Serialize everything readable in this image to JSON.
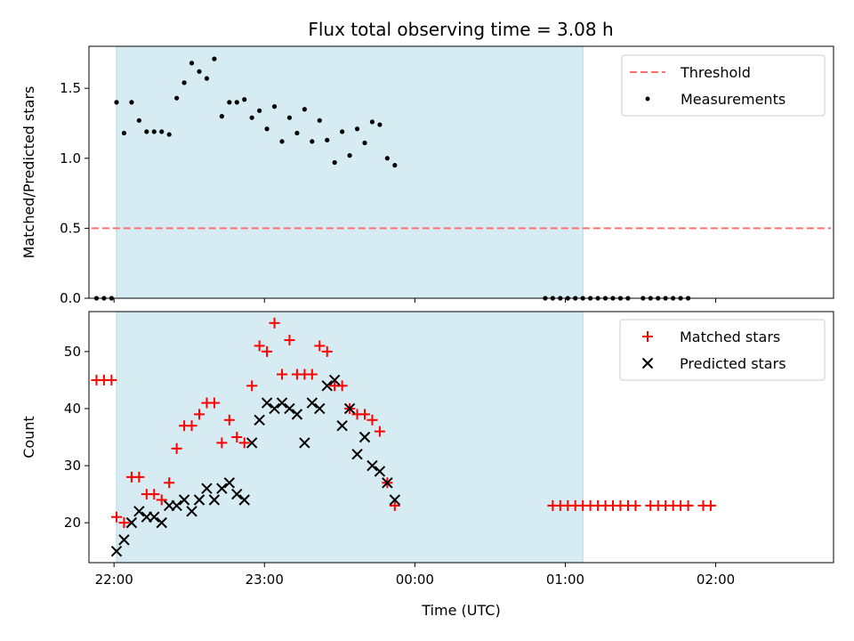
{
  "chart_data": {
    "title": "Flux total observing time = 3.08 h",
    "xlabel": "Time (UTC)",
    "x_axis": {
      "type": "time",
      "range": [
        "21:50",
        "02:47"
      ],
      "ticks": [
        "22:00",
        "23:00",
        "00:00",
        "01:00",
        "02:00"
      ]
    },
    "shaded_interval": {
      "start": "22:01",
      "end": "01:07",
      "color": "#add8e6"
    },
    "colors": {
      "measurements": "#000000",
      "threshold": "#ff7070",
      "matched": "#ff0000",
      "predicted": "#000000",
      "shade": "#add8e6"
    },
    "panels": [
      {
        "type": "scatter",
        "ylabel": "Matched/Predicted stars",
        "ylim": [
          0,
          1.8
        ],
        "yticks": [
          0.0,
          0.5,
          1.0,
          1.5
        ],
        "threshold": {
          "name": "Threshold",
          "value": 0.5,
          "x_start": "21:51",
          "x_end": "02:46",
          "style": "dashed"
        },
        "legend": {
          "placement": "top-right",
          "entries": [
            "Threshold",
            "Measurements"
          ]
        },
        "series": [
          {
            "name": "Measurements",
            "marker": "dot",
            "points": [
              [
                "21:53",
                0.0
              ],
              [
                "21:56",
                0.0
              ],
              [
                "21:59",
                0.0
              ],
              [
                "22:01",
                1.4
              ],
              [
                "22:04",
                1.18
              ],
              [
                "22:07",
                1.4
              ],
              [
                "22:10",
                1.27
              ],
              [
                "22:13",
                1.19
              ],
              [
                "22:16",
                1.19
              ],
              [
                "22:19",
                1.19
              ],
              [
                "22:22",
                1.17
              ],
              [
                "22:25",
                1.43
              ],
              [
                "22:28",
                1.54
              ],
              [
                "22:31",
                1.68
              ],
              [
                "22:34",
                1.62
              ],
              [
                "22:37",
                1.57
              ],
              [
                "22:40",
                1.71
              ],
              [
                "22:43",
                1.3
              ],
              [
                "22:46",
                1.4
              ],
              [
                "22:49",
                1.4
              ],
              [
                "22:52",
                1.42
              ],
              [
                "22:55",
                1.29
              ],
              [
                "22:58",
                1.34
              ],
              [
                "23:01",
                1.21
              ],
              [
                "23:04",
                1.37
              ],
              [
                "23:07",
                1.12
              ],
              [
                "23:10",
                1.29
              ],
              [
                "23:13",
                1.18
              ],
              [
                "23:16",
                1.35
              ],
              [
                "23:19",
                1.12
              ],
              [
                "23:22",
                1.27
              ],
              [
                "23:25",
                1.13
              ],
              [
                "23:28",
                0.97
              ],
              [
                "23:31",
                1.19
              ],
              [
                "23:34",
                1.02
              ],
              [
                "23:37",
                1.21
              ],
              [
                "23:40",
                1.11
              ],
              [
                "23:43",
                1.26
              ],
              [
                "23:46",
                1.24
              ],
              [
                "23:49",
                1.0
              ],
              [
                "23:52",
                0.95
              ],
              [
                "00:52",
                0.0
              ],
              [
                "00:55",
                0.0
              ],
              [
                "00:58",
                0.0
              ],
              [
                "01:01",
                0.0
              ],
              [
                "01:04",
                0.0
              ],
              [
                "01:07",
                0.0
              ],
              [
                "01:10",
                0.0
              ],
              [
                "01:13",
                0.0
              ],
              [
                "01:16",
                0.0
              ],
              [
                "01:19",
                0.0
              ],
              [
                "01:22",
                0.0
              ],
              [
                "01:25",
                0.0
              ],
              [
                "01:31",
                0.0
              ],
              [
                "01:34",
                0.0
              ],
              [
                "01:37",
                0.0
              ],
              [
                "01:40",
                0.0
              ],
              [
                "01:43",
                0.0
              ],
              [
                "01:46",
                0.0
              ],
              [
                "01:49",
                0.0
              ]
            ]
          }
        ]
      },
      {
        "type": "scatter",
        "ylabel": "Count",
        "ylim": [
          13,
          57
        ],
        "yticks": [
          20,
          30,
          40,
          50
        ],
        "legend": {
          "placement": "top-right",
          "entries": [
            "Matched stars",
            "Predicted stars"
          ]
        },
        "series": [
          {
            "name": "Matched stars",
            "marker": "plus",
            "points": [
              [
                "21:53",
                45
              ],
              [
                "21:56",
                45
              ],
              [
                "21:59",
                45
              ],
              [
                "22:01",
                21
              ],
              [
                "22:04",
                20
              ],
              [
                "22:07",
                28
              ],
              [
                "22:10",
                28
              ],
              [
                "22:13",
                25
              ],
              [
                "22:16",
                25
              ],
              [
                "22:19",
                24
              ],
              [
                "22:22",
                27
              ],
              [
                "22:25",
                33
              ],
              [
                "22:28",
                37
              ],
              [
                "22:31",
                37
              ],
              [
                "22:34",
                39
              ],
              [
                "22:37",
                41
              ],
              [
                "22:40",
                41
              ],
              [
                "22:43",
                34
              ],
              [
                "22:46",
                38
              ],
              [
                "22:49",
                35
              ],
              [
                "22:52",
                34
              ],
              [
                "22:55",
                44
              ],
              [
                "22:58",
                51
              ],
              [
                "23:01",
                50
              ],
              [
                "23:04",
                55
              ],
              [
                "23:07",
                46
              ],
              [
                "23:10",
                52
              ],
              [
                "23:13",
                46
              ],
              [
                "23:16",
                46
              ],
              [
                "23:19",
                46
              ],
              [
                "23:22",
                51
              ],
              [
                "23:25",
                50
              ],
              [
                "23:28",
                44
              ],
              [
                "23:31",
                44
              ],
              [
                "23:34",
                40
              ],
              [
                "23:37",
                39
              ],
              [
                "23:40",
                39
              ],
              [
                "23:43",
                38
              ],
              [
                "23:46",
                36
              ],
              [
                "23:49",
                27
              ],
              [
                "23:52",
                23
              ],
              [
                "00:55",
                23
              ],
              [
                "00:58",
                23
              ],
              [
                "01:01",
                23
              ],
              [
                "01:04",
                23
              ],
              [
                "01:07",
                23
              ],
              [
                "01:10",
                23
              ],
              [
                "01:13",
                23
              ],
              [
                "01:16",
                23
              ],
              [
                "01:19",
                23
              ],
              [
                "01:22",
                23
              ],
              [
                "01:25",
                23
              ],
              [
                "01:28",
                23
              ],
              [
                "01:34",
                23
              ],
              [
                "01:37",
                23
              ],
              [
                "01:40",
                23
              ],
              [
                "01:43",
                23
              ],
              [
                "01:46",
                23
              ],
              [
                "01:49",
                23
              ],
              [
                "01:55",
                23
              ],
              [
                "01:58",
                23
              ]
            ]
          },
          {
            "name": "Predicted stars",
            "marker": "x",
            "points": [
              [
                "22:01",
                15
              ],
              [
                "22:04",
                17
              ],
              [
                "22:07",
                20
              ],
              [
                "22:10",
                22
              ],
              [
                "22:13",
                21
              ],
              [
                "22:16",
                21
              ],
              [
                "22:19",
                20
              ],
              [
                "22:22",
                23
              ],
              [
                "22:25",
                23
              ],
              [
                "22:28",
                24
              ],
              [
                "22:31",
                22
              ],
              [
                "22:34",
                24
              ],
              [
                "22:37",
                26
              ],
              [
                "22:40",
                24
              ],
              [
                "22:43",
                26
              ],
              [
                "22:46",
                27
              ],
              [
                "22:49",
                25
              ],
              [
                "22:52",
                24
              ],
              [
                "22:55",
                34
              ],
              [
                "22:58",
                38
              ],
              [
                "23:01",
                41
              ],
              [
                "23:04",
                40
              ],
              [
                "23:07",
                41
              ],
              [
                "23:10",
                40
              ],
              [
                "23:13",
                39
              ],
              [
                "23:16",
                34
              ],
              [
                "23:19",
                41
              ],
              [
                "23:22",
                40
              ],
              [
                "23:25",
                44
              ],
              [
                "23:28",
                45
              ],
              [
                "23:31",
                37
              ],
              [
                "23:34",
                40
              ],
              [
                "23:37",
                32
              ],
              [
                "23:40",
                35
              ],
              [
                "23:43",
                30
              ],
              [
                "23:46",
                29
              ],
              [
                "23:49",
                27
              ],
              [
                "23:52",
                24
              ]
            ]
          }
        ]
      }
    ]
  }
}
